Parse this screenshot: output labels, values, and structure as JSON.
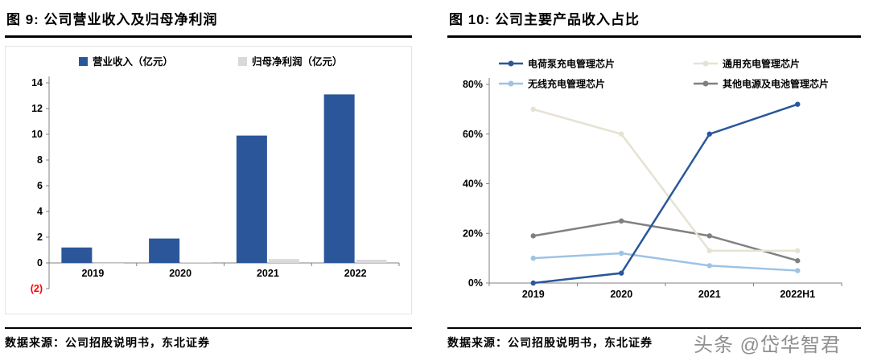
{
  "page": {
    "watermark": "头条 @岱华智君"
  },
  "left_panel": {
    "title": "图 9: 公司营业收入及归母净利润",
    "source": "数据来源：公司招股说明书，东北证券"
  },
  "right_panel": {
    "title": "图 10: 公司主要产品收入占比",
    "source": "数据来源：公司招股说明书，东北证券"
  },
  "chart_data": [
    {
      "type": "bar",
      "title": "公司营业收入及归母净利润",
      "categories": [
        "2019",
        "2020",
        "2021",
        "2022"
      ],
      "series": [
        {
          "name": "营业收入（亿元）",
          "color": "#2B579A",
          "values": [
            1.2,
            1.9,
            9.9,
            13.1
          ]
        },
        {
          "name": "归母净利润（亿元）",
          "color": "#D9D9D9",
          "values": [
            -0.05,
            0.05,
            0.3,
            0.25
          ]
        }
      ],
      "ylim": [
        -2,
        14
      ],
      "ytick_step": 2,
      "ytick_labels": [
        "(2)",
        "0",
        "2",
        "4",
        "6",
        "8",
        "10",
        "12",
        "14"
      ],
      "negative_label_color": "#FF0000",
      "legend_position": "top",
      "grid": false
    },
    {
      "type": "line",
      "title": "公司主要产品收入占比",
      "categories": [
        "2019",
        "2020",
        "2021",
        "2022H1"
      ],
      "series": [
        {
          "name": "电荷泵充电管理芯片",
          "color": "#2B579A",
          "values": [
            0,
            4,
            60,
            72
          ]
        },
        {
          "name": "通用充电管理芯片",
          "color": "#E6E2D3",
          "values": [
            70,
            60,
            13,
            13
          ]
        },
        {
          "name": "无线充电管理芯片",
          "color": "#9DC3E6",
          "values": [
            10,
            12,
            7,
            5
          ]
        },
        {
          "name": "其他电源及电池管理芯片",
          "color": "#808080",
          "values": [
            19,
            25,
            19,
            9
          ]
        }
      ],
      "ylim": [
        0,
        80
      ],
      "ytick_step": 20,
      "ytick_labels": [
        "0%",
        "20%",
        "40%",
        "60%",
        "80%"
      ],
      "legend_position": "top",
      "grid": false
    }
  ]
}
